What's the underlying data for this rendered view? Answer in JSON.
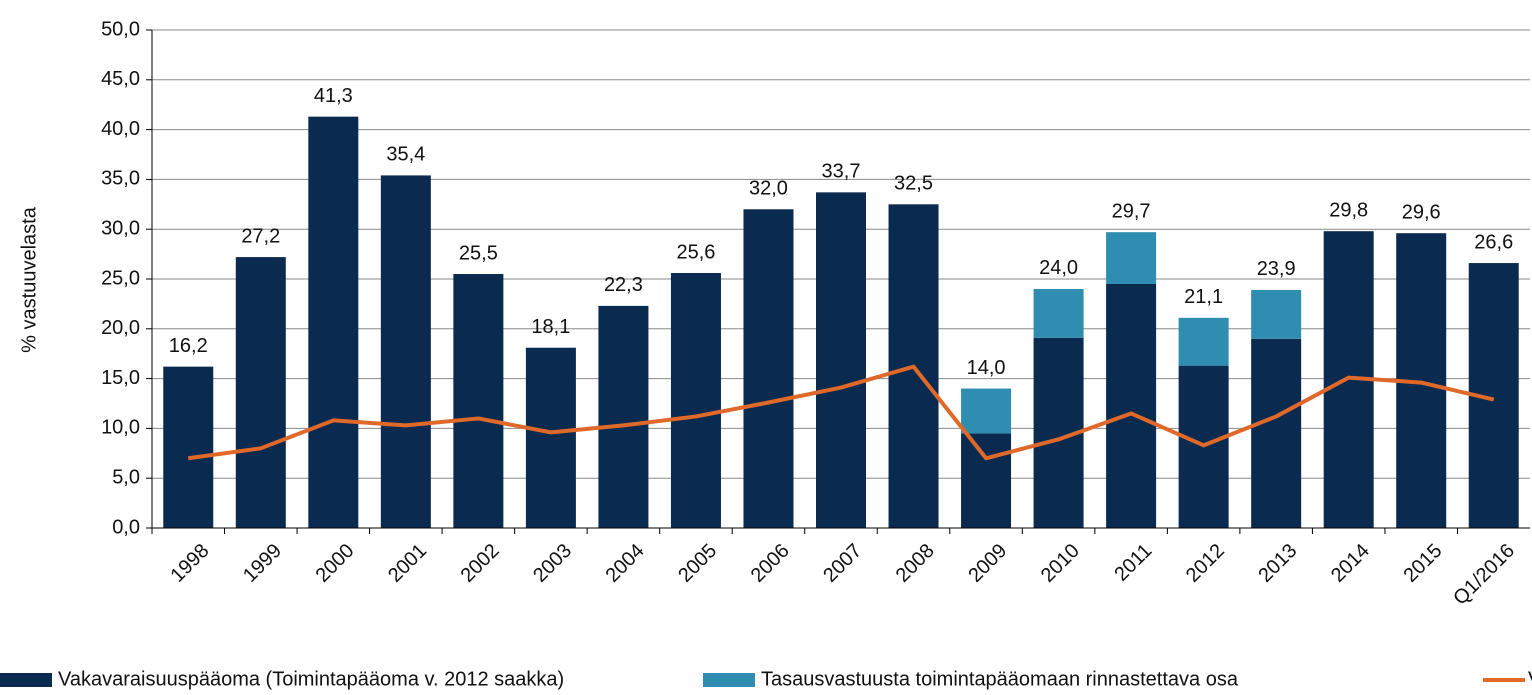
{
  "chart_data": {
    "type": "stacked-bar-line",
    "y_label": "% vastuuvelasta",
    "categories": [
      "1998",
      "1999",
      "2000",
      "2001",
      "2002",
      "2003",
      "2004",
      "2005",
      "2006",
      "2007",
      "2008",
      "2009",
      "2010",
      "2011",
      "2012",
      "2013",
      "2014",
      "2015",
      "Q1/2016"
    ],
    "series": [
      {
        "name": "Vakavaraisuuspääoma (Toimintapääoma v. 2012 saakka)",
        "color": "#0b2a4f",
        "kind": "bar",
        "values": [
          16.2,
          27.2,
          41.3,
          35.4,
          25.5,
          18.1,
          22.3,
          25.6,
          32.0,
          33.7,
          32.5,
          9.5,
          19.1,
          24.5,
          16.3,
          19.0,
          29.8,
          29.6,
          26.6
        ]
      },
      {
        "name": "Tasausvastuusta toimintapääomaan rinnastettava osa",
        "color": "#2e8db0",
        "kind": "bar",
        "values": [
          null,
          null,
          null,
          null,
          null,
          null,
          null,
          null,
          null,
          null,
          null,
          4.5,
          4.9,
          5.2,
          4.8,
          4.9,
          null,
          null,
          null
        ]
      },
      {
        "name": "Vakavarai",
        "color": "#e0692a",
        "kind": "line",
        "values": [
          7.0,
          8.0,
          10.8,
          10.3,
          11.0,
          9.6,
          10.3,
          11.2,
          12.6,
          14.1,
          16.2,
          7.0,
          8.9,
          11.5,
          8.3,
          11.2,
          15.1,
          14.6,
          12.9
        ]
      }
    ],
    "totals": [
      16.2,
      27.2,
      41.3,
      35.4,
      25.5,
      18.1,
      22.3,
      25.6,
      32.0,
      33.7,
      32.5,
      14.0,
      24.0,
      29.7,
      21.1,
      23.9,
      29.8,
      29.6,
      26.6
    ],
    "total_labels": [
      "16,2",
      "27,2",
      "41,3",
      "35,4",
      "25,5",
      "18,1",
      "22,3",
      "25,6",
      "32,0",
      "33,7",
      "32,5",
      "14,0",
      "24,0",
      "29,7",
      "21,1",
      "23,9",
      "29,8",
      "29,6",
      "26,6"
    ],
    "ylim": [
      0,
      50
    ],
    "yticks": [
      {
        "value": 0,
        "label": "0,0"
      },
      {
        "value": 5,
        "label": "5,0"
      },
      {
        "value": 10,
        "label": "10,0"
      },
      {
        "value": 15,
        "label": "15,0"
      },
      {
        "value": 20,
        "label": "20,0"
      },
      {
        "value": 25,
        "label": "25,0"
      },
      {
        "value": 30,
        "label": "30,0"
      },
      {
        "value": 35,
        "label": "35,0"
      },
      {
        "value": 40,
        "label": "40,0"
      },
      {
        "value": 45,
        "label": "45,0"
      },
      {
        "value": 50,
        "label": "50,0"
      }
    ],
    "grid": true
  }
}
